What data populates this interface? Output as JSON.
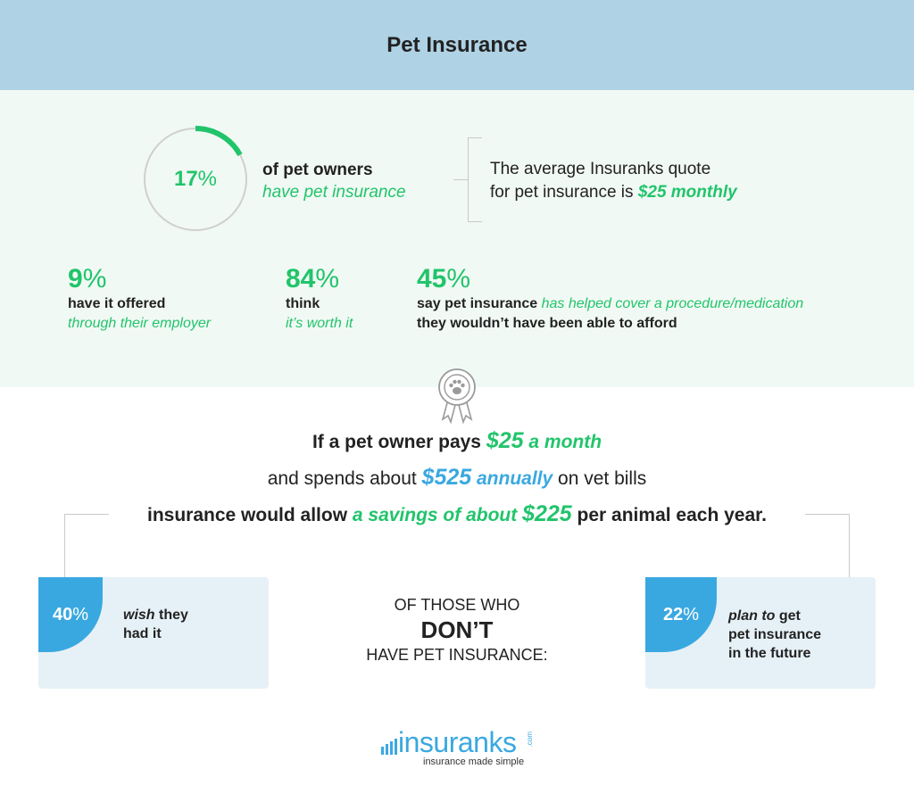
{
  "header": {
    "title": "Pet Insurance"
  },
  "donut": {
    "value_num": "17",
    "value_pct": "%",
    "fraction": 0.17,
    "color": "#21c46b"
  },
  "owners": {
    "line1": "of pet owners",
    "line2": "have pet insurance"
  },
  "quote": {
    "line1": "The average Insuranks quote",
    "line2_prefix": "for pet insurance is ",
    "amount": "$25 monthly"
  },
  "stats": [
    {
      "num": "9",
      "pct": "%",
      "text": "have it offered",
      "sub": "through their employer"
    },
    {
      "num": "84",
      "pct": "%",
      "text": "think",
      "sub": "it’s worth it"
    },
    {
      "num": "45",
      "pct": "%",
      "text_prefix": "say pet insurance ",
      "text_highlight": "has helped cover a procedure/medication",
      "text2": "they wouldn’t have been able to afford"
    }
  ],
  "scenario": {
    "line1_prefix": "If a pet owner pays ",
    "line1_amount": "$25",
    "line1_suffix": " a month",
    "line2_prefix": "and spends about ",
    "line2_amount": "$525",
    "line2_mid": " annually",
    "line2_suffix": " on vet bills",
    "line3_prefix": "insurance would allow ",
    "line3_highlight": "a savings of about ",
    "line3_amount": "$225",
    "line3_suffix": " per animal each year."
  },
  "left_card": {
    "num": "40",
    "pct": "%",
    "em": "wish",
    "rest1": " they",
    "rest2": "had it"
  },
  "center": {
    "line1": "OF THOSE WHO",
    "line2": "DON’T",
    "line3": "HAVE PET INSURANCE:"
  },
  "right_card": {
    "num": "22",
    "pct": "%",
    "em": "plan to",
    "rest1": " get",
    "rest2": "pet insurance",
    "rest3": "in the future"
  },
  "logo": {
    "word": "insuranks",
    "com": ".com",
    "tagline": "insurance made simple"
  },
  "colors": {
    "green": "#21c46b",
    "blue": "#3aa8e0",
    "header_bg": "#afd2e5",
    "band_bg": "#f1f9f4"
  },
  "icons": {
    "award": "award-ribbon-paw-icon"
  }
}
